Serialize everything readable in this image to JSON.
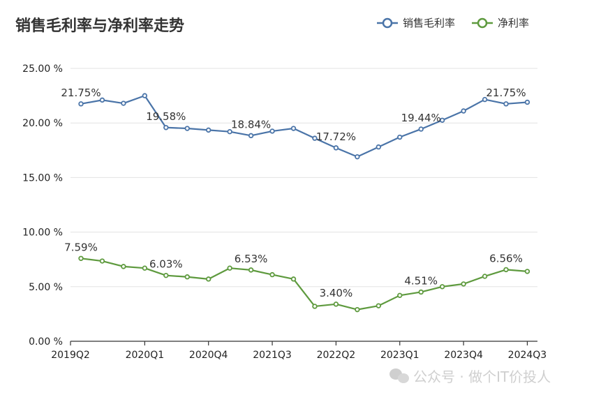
{
  "chart_data": {
    "type": "line",
    "title": "销售毛利率与净利率走势",
    "x": [
      "2019Q2",
      "2019Q3",
      "2019Q4",
      "2020Q1",
      "2020Q2",
      "2020Q3",
      "2020Q4",
      "2021Q1",
      "2021Q2",
      "2021Q3",
      "2021Q4",
      "2022Q1",
      "2022Q2",
      "2022Q3",
      "2022Q4",
      "2023Q1",
      "2023Q2",
      "2023Q3",
      "2023Q4",
      "2024Q1",
      "2024Q2",
      "2024Q3"
    ],
    "x_tick_labels": [
      "2019Q2",
      "2020Q1",
      "2020Q4",
      "2021Q3",
      "2022Q2",
      "2023Q1",
      "2023Q4",
      "2024Q3"
    ],
    "y_tick_labels": [
      "0.00 %",
      "5.00 %",
      "10.00 %",
      "15.00 %",
      "20.00 %",
      "25.00 %"
    ],
    "ylim": [
      0,
      25
    ],
    "grid": true,
    "legend_position": "top-right",
    "series": [
      {
        "name": "销售毛利率",
        "color": "#4a74a8",
        "values": [
          21.75,
          22.1,
          21.8,
          22.5,
          19.58,
          19.5,
          19.35,
          19.2,
          18.84,
          19.25,
          19.5,
          18.6,
          17.72,
          16.9,
          17.8,
          18.7,
          19.44,
          20.25,
          21.1,
          22.15,
          21.75,
          21.9
        ],
        "labels": [
          {
            "i": 0,
            "text": "21.75%"
          },
          {
            "i": 4,
            "text": "19.58%"
          },
          {
            "i": 8,
            "text": "18.84%"
          },
          {
            "i": 12,
            "text": "17.72%"
          },
          {
            "i": 16,
            "text": "19.44%"
          },
          {
            "i": 20,
            "text": "21.75%"
          }
        ]
      },
      {
        "name": "净利率",
        "color": "#5e9a3e",
        "values": [
          7.59,
          7.35,
          6.85,
          6.7,
          6.03,
          5.9,
          5.7,
          6.7,
          6.53,
          6.1,
          5.7,
          3.2,
          3.4,
          2.9,
          3.25,
          4.2,
          4.51,
          5.0,
          5.25,
          5.95,
          6.56,
          6.4
        ],
        "labels": [
          {
            "i": 0,
            "text": "7.59%"
          },
          {
            "i": 4,
            "text": "6.03%"
          },
          {
            "i": 8,
            "text": "6.53%"
          },
          {
            "i": 12,
            "text": "3.40%"
          },
          {
            "i": 16,
            "text": "4.51%"
          },
          {
            "i": 20,
            "text": "6.56%"
          }
        ]
      }
    ]
  },
  "watermark": "公众号 · 做个IT价投人",
  "icons": {
    "watermark_icon": "wechat-icon"
  }
}
